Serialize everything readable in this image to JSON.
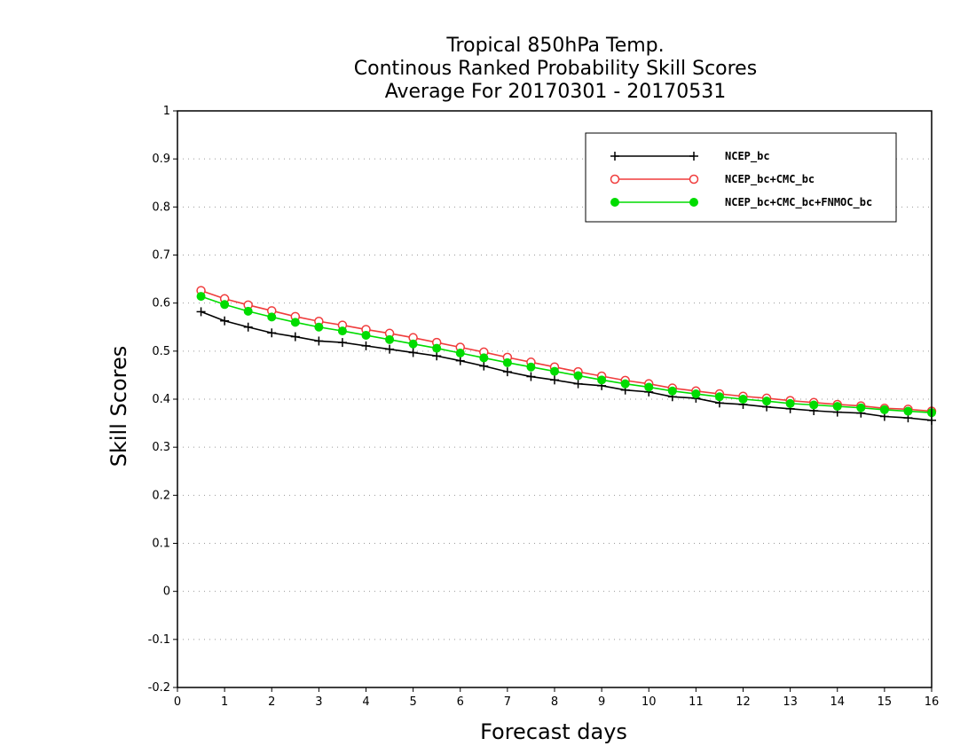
{
  "chart_data": {
    "type": "line",
    "title_lines": [
      "Tropical 850hPa Temp.",
      "Continous Ranked Probability Skill Scores",
      "Average For 20170301 - 20170531"
    ],
    "xlabel": "Forecast days",
    "ylabel": "Skill Scores",
    "xlim": [
      0,
      16
    ],
    "ylim": [
      -0.2,
      1
    ],
    "xticks": [
      "0",
      "1",
      "2",
      "3",
      "4",
      "5",
      "6",
      "7",
      "8",
      "9",
      "10",
      "11",
      "12",
      "13",
      "14",
      "15",
      "16"
    ],
    "yticks": [
      "-0.2",
      "-0.1",
      "0",
      "0.1",
      "0.2",
      "0.3",
      "0.4",
      "0.5",
      "0.6",
      "0.7",
      "0.8",
      "0.9",
      "1"
    ],
    "grid": true,
    "legend_position": "top-right",
    "x": [
      0.5,
      1,
      1.5,
      2,
      2.5,
      3,
      3.5,
      4,
      4.5,
      5,
      5.5,
      6,
      6.5,
      7,
      7.5,
      8,
      8.5,
      9,
      9.5,
      10,
      10.5,
      11,
      11.5,
      12,
      12.5,
      13,
      13.5,
      14,
      14.5,
      15,
      15.5,
      16
    ],
    "series": [
      {
        "name": "NCEP_bc",
        "color": "#000000",
        "marker": "plus",
        "values": [
          0.582,
          0.563,
          0.55,
          0.538,
          0.53,
          0.521,
          0.518,
          0.511,
          0.504,
          0.497,
          0.49,
          0.48,
          0.469,
          0.457,
          0.447,
          0.44,
          0.432,
          0.428,
          0.419,
          0.415,
          0.405,
          0.402,
          0.392,
          0.389,
          0.384,
          0.38,
          0.376,
          0.373,
          0.371,
          0.364,
          0.361,
          0.356
        ]
      },
      {
        "name": "NCEP_bc+CMC_bc",
        "color": "#f03c3c",
        "marker": "open-circle",
        "values": [
          0.626,
          0.609,
          0.596,
          0.584,
          0.572,
          0.562,
          0.554,
          0.545,
          0.537,
          0.528,
          0.518,
          0.508,
          0.498,
          0.487,
          0.477,
          0.467,
          0.457,
          0.448,
          0.439,
          0.432,
          0.423,
          0.417,
          0.411,
          0.406,
          0.402,
          0.397,
          0.393,
          0.389,
          0.386,
          0.381,
          0.379,
          0.375
        ]
      },
      {
        "name": "NCEP_bc+CMC_bc+FNMOC_bc",
        "color": "#00dc00",
        "marker": "filled-circle",
        "values": [
          0.614,
          0.597,
          0.583,
          0.571,
          0.56,
          0.55,
          0.542,
          0.533,
          0.524,
          0.515,
          0.506,
          0.496,
          0.486,
          0.476,
          0.467,
          0.458,
          0.449,
          0.44,
          0.432,
          0.425,
          0.417,
          0.411,
          0.405,
          0.4,
          0.396,
          0.391,
          0.388,
          0.385,
          0.382,
          0.378,
          0.375,
          0.372
        ]
      }
    ]
  }
}
